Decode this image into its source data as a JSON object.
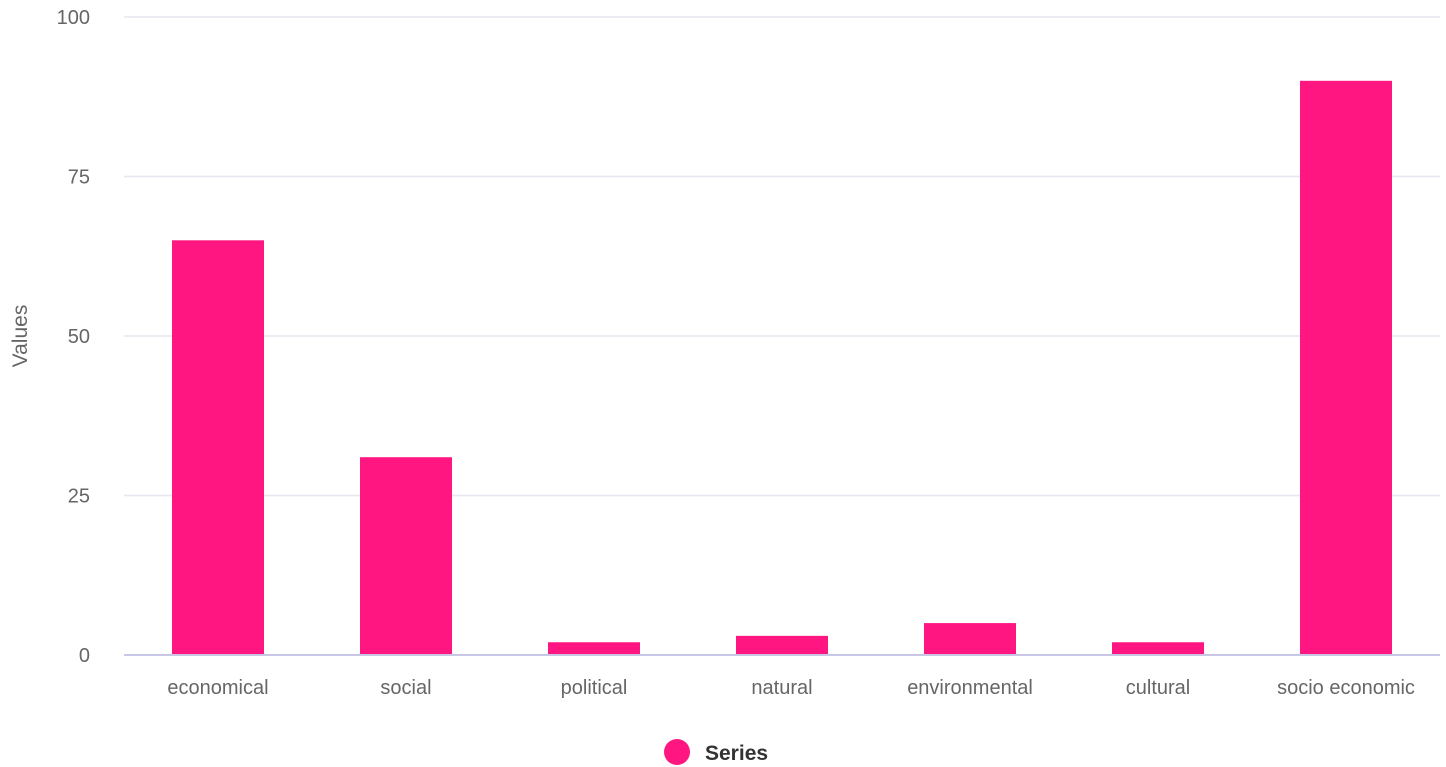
{
  "chart_data": {
    "type": "bar",
    "categories": [
      "economical",
      "social",
      "political",
      "natural",
      "environmental",
      "cultural",
      "socio economic"
    ],
    "series": [
      {
        "name": "Series",
        "values": [
          65,
          31,
          2,
          3,
          5,
          2,
          90
        ]
      }
    ],
    "xlabel": "",
    "ylabel": "Values",
    "ylim": [
      0,
      100
    ],
    "yticks": [
      0,
      25,
      50,
      75,
      100
    ],
    "grid": true,
    "legend_position": "bottom-center",
    "colors": {
      "bar": "#ff1681",
      "grid": "#e6e6ef",
      "axis": "#c8c8e6"
    }
  }
}
